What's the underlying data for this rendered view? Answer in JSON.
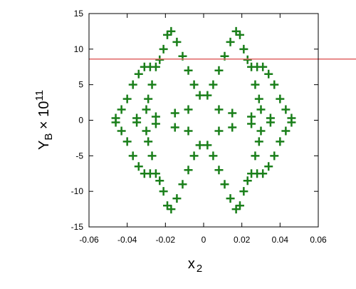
{
  "chart_data": {
    "type": "scatter",
    "xlabel": {
      "base": "x",
      "sub": "2"
    },
    "ylabel": {
      "base": "Y",
      "sub": "B",
      "mid": " × 10",
      "sup": "11"
    },
    "xlim": [
      -0.06,
      0.06
    ],
    "ylim": [
      -15,
      15
    ],
    "xticks": [
      -0.06,
      -0.04,
      -0.02,
      0,
      0.02,
      0.04,
      0.06
    ],
    "yticks": [
      -15,
      -10,
      -5,
      0,
      5,
      10,
      15
    ],
    "hline": {
      "value": 8.6,
      "color": "#e06666"
    },
    "series": [
      {
        "color": "#1a7f1a",
        "marker": "+",
        "x": [
          0.002,
          0.005,
          0.008,
          0.011,
          0.014,
          0.017,
          0.019,
          0.021,
          0.023,
          0.025,
          0.028,
          0.031,
          0.034,
          0.037,
          0.04,
          0.043,
          0.046,
          0.027,
          0.029,
          0.03,
          0.008,
          0.015,
          0.025,
          0.035,
          -0.002,
          -0.005,
          -0.008,
          -0.011,
          -0.014,
          -0.017,
          -0.019,
          -0.021,
          -0.023,
          -0.025,
          -0.028,
          -0.031,
          -0.034,
          -0.037,
          -0.04,
          -0.043,
          -0.046,
          -0.027,
          -0.029,
          -0.03,
          -0.008,
          -0.015,
          -0.025,
          -0.035,
          -0.002,
          -0.005,
          -0.008,
          -0.011,
          -0.014,
          -0.017,
          -0.019,
          -0.021,
          -0.023,
          -0.025,
          -0.028,
          -0.031,
          -0.034,
          -0.037,
          -0.04,
          -0.043,
          -0.046,
          -0.027,
          -0.029,
          -0.03,
          -0.008,
          -0.015,
          -0.025,
          -0.035,
          0.002,
          0.005,
          0.008,
          0.011,
          0.014,
          0.017,
          0.019,
          0.021,
          0.023,
          0.025,
          0.028,
          0.031,
          0.034,
          0.037,
          0.04,
          0.043,
          0.046,
          0.027,
          0.029,
          0.03,
          0.008,
          0.015,
          0.025,
          0.035
        ],
        "values": [
          3.5,
          5,
          7,
          9,
          11,
          12.5,
          12,
          10,
          8.5,
          7.5,
          7.5,
          7.5,
          6.5,
          5,
          3,
          1.5,
          0.3,
          5,
          3,
          1.5,
          1.5,
          1,
          0.5,
          0.3,
          3.5,
          5,
          7,
          9,
          11,
          12.5,
          12,
          10,
          8.5,
          7.5,
          7.5,
          7.5,
          6.5,
          5,
          3,
          1.5,
          0.3,
          5,
          3,
          1.5,
          1.5,
          1,
          0.5,
          0.3,
          -3.5,
          -5,
          -7,
          -9,
          -11,
          -12.5,
          -12,
          -10,
          -8.5,
          -7.5,
          -7.5,
          -7.5,
          -6.5,
          -5,
          -3,
          -1.5,
          -0.3,
          -5,
          -3,
          -1.5,
          -1.5,
          -1,
          -0.5,
          -0.3,
          -3.5,
          -5,
          -7,
          -9,
          -11,
          -12.5,
          -12,
          -10,
          -8.5,
          -7.5,
          -7.5,
          -7.5,
          -6.5,
          -5,
          -3,
          -1.5,
          -0.3,
          -5,
          -3,
          -1.5,
          -1.5,
          -1,
          -0.5,
          -0.3
        ]
      }
    ]
  }
}
